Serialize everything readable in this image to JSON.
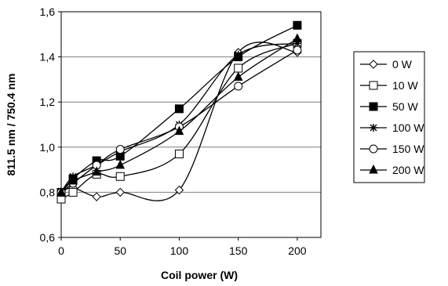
{
  "chart_data": {
    "type": "line",
    "xlabel": "Coil power (W)",
    "ylabel": "811.5 nm / 750.4 nm",
    "xlim": [
      0,
      220
    ],
    "ylim": [
      0.6,
      1.6
    ],
    "x_ticks": [
      "0",
      "50",
      "100",
      "150",
      "200"
    ],
    "y_ticks": [
      "0,6",
      "0,8",
      "1,0",
      "1,2",
      "1,4",
      "1,6"
    ],
    "grid": "horizontal",
    "legend_position": "right",
    "x": [
      0,
      10,
      30,
      50,
      100,
      150,
      200
    ],
    "series": [
      {
        "name": "0 W",
        "marker": "diamond-open",
        "values": [
          0.8,
          0.82,
          0.78,
          0.8,
          0.81,
          1.42,
          1.42
        ]
      },
      {
        "name": "10 W",
        "marker": "square-open",
        "values": [
          0.77,
          0.8,
          0.88,
          0.87,
          0.97,
          1.35,
          1.46
        ]
      },
      {
        "name": "50 W",
        "marker": "square-filled",
        "values": [
          0.8,
          0.86,
          0.94,
          0.96,
          1.17,
          1.4,
          1.54
        ]
      },
      {
        "name": "100 W",
        "marker": "asterisk",
        "values": [
          0.8,
          0.87,
          0.92,
          0.98,
          1.1,
          1.41,
          1.46
        ]
      },
      {
        "name": "150 W",
        "marker": "circle-open",
        "values": [
          0.8,
          0.84,
          0.92,
          0.99,
          1.09,
          1.27,
          1.43
        ]
      },
      {
        "name": "200 W",
        "marker": "triangle-filled",
        "values": [
          0.8,
          0.85,
          0.89,
          0.92,
          1.07,
          1.31,
          1.48
        ]
      }
    ]
  }
}
